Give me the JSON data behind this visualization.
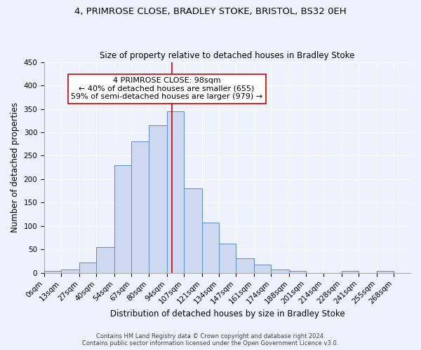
{
  "title1": "4, PRIMROSE CLOSE, BRADLEY STOKE, BRISTOL, BS32 0EH",
  "title2": "Size of property relative to detached houses in Bradley Stoke",
  "xlabel": "Distribution of detached houses by size in Bradley Stoke",
  "ylabel": "Number of detached properties",
  "bin_labels": [
    "0sqm",
    "13sqm",
    "27sqm",
    "40sqm",
    "54sqm",
    "67sqm",
    "80sqm",
    "94sqm",
    "107sqm",
    "121sqm",
    "134sqm",
    "147sqm",
    "161sqm",
    "174sqm",
    "188sqm",
    "201sqm",
    "214sqm",
    "228sqm",
    "241sqm",
    "255sqm",
    "268sqm"
  ],
  "bar_heights": [
    4,
    7,
    22,
    55,
    230,
    280,
    315,
    345,
    180,
    107,
    63,
    31,
    17,
    7,
    5,
    0,
    0,
    4,
    0,
    4
  ],
  "bin_edges": [
    0,
    13,
    27,
    40,
    54,
    67,
    80,
    94,
    107,
    121,
    134,
    147,
    161,
    174,
    188,
    201,
    214,
    228,
    241,
    255,
    268
  ],
  "bar_color": "#ccd9f0",
  "bar_edge_color": "#5b8ec4",
  "property_value": 98,
  "red_line_color": "#cc0000",
  "annotation_text": "4 PRIMROSE CLOSE: 98sqm\n← 40% of detached houses are smaller (655)\n59% of semi-detached houses are larger (979) →",
  "annotation_box_color": "#ffffff",
  "annotation_box_edge_color": "#cc0000",
  "footer_text1": "Contains HM Land Registry data © Crown copyright and database right 2024.",
  "footer_text2": "Contains public sector information licensed under the Open Government Licence v3.0.",
  "bg_color": "#eef2fc",
  "ylim": [
    0,
    450
  ],
  "xlim_min": 0,
  "xlim_max": 281,
  "yticks": [
    0,
    50,
    100,
    150,
    200,
    250,
    300,
    350,
    400,
    450
  ],
  "title1_fontsize": 9.5,
  "title2_fontsize": 8.5,
  "xlabel_fontsize": 8.5,
  "ylabel_fontsize": 8.5,
  "tick_fontsize": 7.5,
  "footer_fontsize": 6,
  "annotation_fontsize": 8
}
